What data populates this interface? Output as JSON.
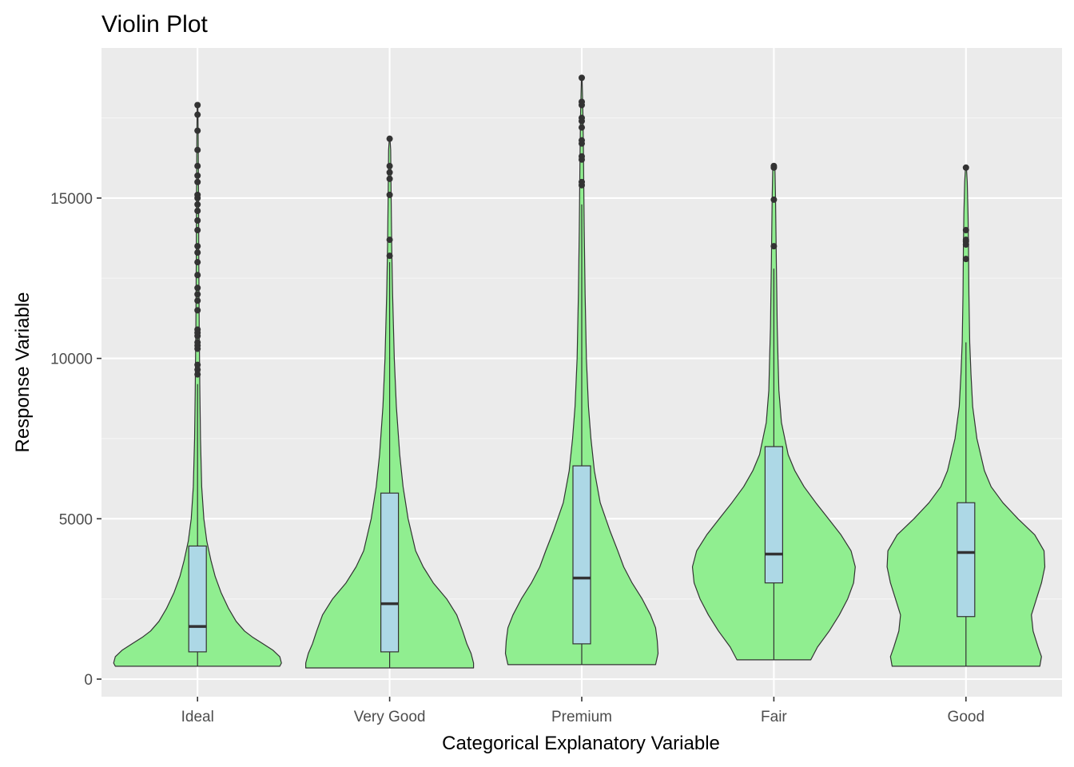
{
  "chart_data": {
    "type": "violin",
    "title": "Violin Plot",
    "xlabel": "Categorical Explanatory Variable",
    "ylabel": "Response Variable",
    "categories": [
      "Ideal",
      "Very Good",
      "Premium",
      "Fair",
      "Good"
    ],
    "ylim": [
      -600,
      19500
    ],
    "yticks": [
      0,
      5000,
      10000,
      15000
    ],
    "grid": true,
    "colors": {
      "panel": "#EBEBEB",
      "grid_major": "#FFFFFF",
      "grid_minor": "#F5F5F5",
      "violin_fill": "#90EE90",
      "box_fill": "#ADD8E6",
      "outline": "#333333"
    },
    "series": [
      {
        "category": "Ideal",
        "box": {
          "lower_whisker": 400,
          "q1": 850,
          "median": 1640,
          "q3": 4150,
          "upper_whisker": 9200
        },
        "range": [
          400,
          17900
        ],
        "outliers": [
          9500,
          9650,
          9800,
          10300,
          10400,
          10500,
          10700,
          10800,
          10900,
          11500,
          11800,
          12000,
          12200,
          12600,
          13000,
          13300,
          13500,
          14000,
          14300,
          14600,
          14800,
          15000,
          15100,
          15500,
          15700,
          16000,
          16500,
          17100,
          17600,
          17900
        ],
        "density_profile": [
          [
            400,
            0.98
          ],
          [
            500,
            1.0
          ],
          [
            700,
            0.98
          ],
          [
            900,
            0.9
          ],
          [
            1100,
            0.78
          ],
          [
            1300,
            0.66
          ],
          [
            1500,
            0.56
          ],
          [
            1800,
            0.46
          ],
          [
            2200,
            0.37
          ],
          [
            2700,
            0.28
          ],
          [
            3200,
            0.21
          ],
          [
            3700,
            0.16
          ],
          [
            4300,
            0.11
          ],
          [
            5000,
            0.075
          ],
          [
            6000,
            0.05
          ],
          [
            7500,
            0.035
          ],
          [
            9000,
            0.028
          ],
          [
            11000,
            0.02
          ],
          [
            13000,
            0.015
          ],
          [
            15000,
            0.012
          ],
          [
            17000,
            0.008
          ],
          [
            17900,
            0.004
          ]
        ]
      },
      {
        "category": "Very Good",
        "box": {
          "lower_whisker": 350,
          "q1": 850,
          "median": 2350,
          "q3": 5800,
          "upper_whisker": 13000
        },
        "range": [
          350,
          16850
        ],
        "outliers": [
          13200,
          13700,
          15100,
          15600,
          15800,
          16000,
          16850
        ],
        "density_profile": [
          [
            350,
            1.0
          ],
          [
            500,
            1.0
          ],
          [
            800,
            0.97
          ],
          [
            1100,
            0.92
          ],
          [
            1500,
            0.87
          ],
          [
            2000,
            0.8
          ],
          [
            2500,
            0.68
          ],
          [
            3000,
            0.52
          ],
          [
            3500,
            0.4
          ],
          [
            4000,
            0.31
          ],
          [
            5000,
            0.22
          ],
          [
            6000,
            0.16
          ],
          [
            7000,
            0.12
          ],
          [
            8500,
            0.08
          ],
          [
            10000,
            0.055
          ],
          [
            12000,
            0.035
          ],
          [
            13500,
            0.025
          ],
          [
            15000,
            0.018
          ],
          [
            16500,
            0.012
          ],
          [
            16850,
            0.004
          ]
        ]
      },
      {
        "category": "Premium",
        "box": {
          "lower_whisker": 450,
          "q1": 1100,
          "median": 3150,
          "q3": 6650,
          "upper_whisker": 14800
        },
        "range": [
          450,
          18750
        ],
        "outliers": [
          15400,
          15500,
          16200,
          16300,
          16700,
          16800,
          17200,
          17400,
          17500,
          17900,
          18000,
          18750
        ],
        "density_profile": [
          [
            450,
            0.88
          ],
          [
            800,
            0.91
          ],
          [
            1200,
            0.9
          ],
          [
            1600,
            0.88
          ],
          [
            2000,
            0.82
          ],
          [
            2500,
            0.72
          ],
          [
            3000,
            0.6
          ],
          [
            3500,
            0.5
          ],
          [
            4000,
            0.43
          ],
          [
            4600,
            0.34
          ],
          [
            5500,
            0.22
          ],
          [
            6500,
            0.15
          ],
          [
            7500,
            0.11
          ],
          [
            8500,
            0.08
          ],
          [
            10000,
            0.055
          ],
          [
            12000,
            0.04
          ],
          [
            14000,
            0.03
          ],
          [
            16000,
            0.022
          ],
          [
            17500,
            0.015
          ],
          [
            18750,
            0.004
          ]
        ]
      },
      {
        "category": "Fair",
        "box": {
          "lower_whisker": 600,
          "q1": 3000,
          "median": 3900,
          "q3": 7250,
          "upper_whisker": 12800
        },
        "range": [
          600,
          16000
        ],
        "outliers": [
          13500,
          14950,
          15950,
          16000
        ],
        "density_profile": [
          [
            600,
            0.44
          ],
          [
            1000,
            0.52
          ],
          [
            1500,
            0.66
          ],
          [
            2000,
            0.78
          ],
          [
            2500,
            0.88
          ],
          [
            3000,
            0.95
          ],
          [
            3500,
            0.97
          ],
          [
            4000,
            0.92
          ],
          [
            4500,
            0.8
          ],
          [
            5000,
            0.65
          ],
          [
            5500,
            0.5
          ],
          [
            6000,
            0.36
          ],
          [
            6500,
            0.25
          ],
          [
            7000,
            0.17
          ],
          [
            8000,
            0.09
          ],
          [
            9000,
            0.06
          ],
          [
            10000,
            0.05
          ],
          [
            11000,
            0.04
          ],
          [
            12000,
            0.035
          ],
          [
            13000,
            0.03
          ],
          [
            14000,
            0.025
          ],
          [
            15000,
            0.02
          ],
          [
            16000,
            0.012
          ]
        ]
      },
      {
        "category": "Good",
        "box": {
          "lower_whisker": 400,
          "q1": 1950,
          "median": 3950,
          "q3": 5500,
          "upper_whisker": 10500
        },
        "range": [
          400,
          15950
        ],
        "outliers": [
          13100,
          13550,
          13650,
          13700,
          14000,
          15950
        ],
        "density_profile": [
          [
            400,
            0.88
          ],
          [
            700,
            0.9
          ],
          [
            1000,
            0.86
          ],
          [
            1500,
            0.8
          ],
          [
            2000,
            0.78
          ],
          [
            2500,
            0.84
          ],
          [
            3000,
            0.9
          ],
          [
            3500,
            0.94
          ],
          [
            4000,
            0.93
          ],
          [
            4500,
            0.82
          ],
          [
            5000,
            0.62
          ],
          [
            5500,
            0.44
          ],
          [
            6000,
            0.3
          ],
          [
            6500,
            0.22
          ],
          [
            7500,
            0.13
          ],
          [
            8500,
            0.08
          ],
          [
            9500,
            0.06
          ],
          [
            10500,
            0.045
          ],
          [
            12000,
            0.035
          ],
          [
            13500,
            0.03
          ],
          [
            14500,
            0.025
          ],
          [
            15500,
            0.015
          ],
          [
            15950,
            0.006
          ]
        ]
      }
    ]
  }
}
